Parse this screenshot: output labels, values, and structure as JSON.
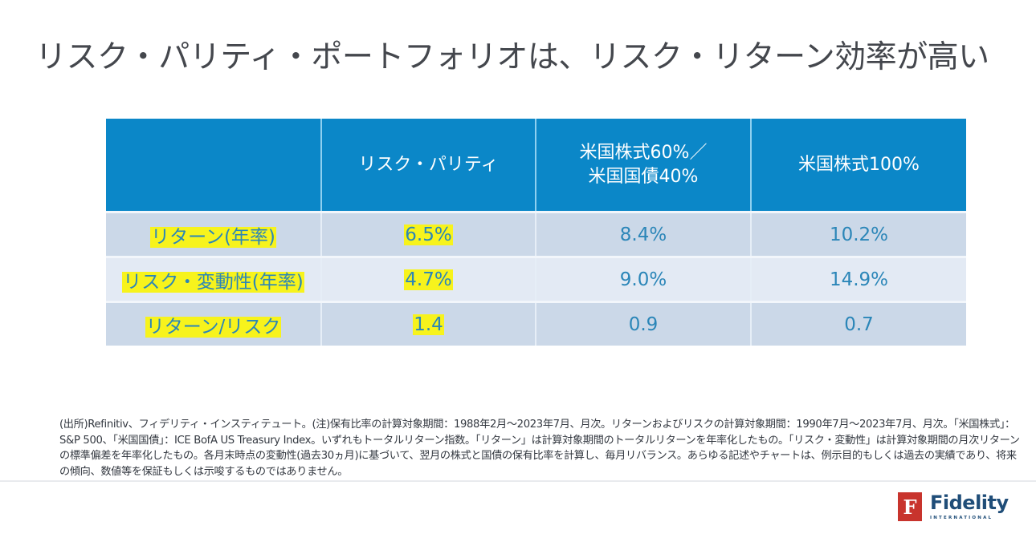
{
  "page": {
    "title": "リスク・パリティ・ポートフォリオは、リスク・リターン効率が高い"
  },
  "table": {
    "headers": [
      "",
      "リスク・パリティ",
      "米国株式60%／\n米国国債40%",
      "米国株式100%"
    ],
    "header_lines": {
      "col2_line1": "米国株式60%／",
      "col2_line2": "米国国債40%"
    },
    "rows": [
      {
        "label": "リターン(年率)",
        "values": [
          "6.5%",
          "8.4%",
          "10.2%"
        ]
      },
      {
        "label": "リスク・変動性(年率)",
        "values": [
          "4.7%",
          "9.0%",
          "14.9%"
        ]
      },
      {
        "label": "リターン/リスク",
        "values": [
          "1.4",
          "0.9",
          "0.7"
        ]
      }
    ],
    "highlighted_column": "リスク・パリティ"
  },
  "footnote": "(出所)Refinitiv、フィデリティ・インスティテュート。(注)保有比率の計算対象期間：1988年2月～2023年7月、月次。リターンおよびリスクの計算対象期間：1990年7月～2023年7月、月次。「米国株式」：S&P 500、「米国国債」：ICE BofA US Treasury Index。いずれもトータルリターン指数。「リターン」は計算対象期間のトータルリターンを年率化したもの。「リスク・変動性」は計算対象期間の月次リターンの標準偏差を年率化したもの。各月末時点の変動性(過去30ヵ月)に基づいて、翌月の株式と国債の保有比率を計算し、毎月リバランス。あらゆる記述やチャートは、例示目的もしくは過去の実績であり、将来の傾向、数値等を保証もしくは示唆するものではありません。",
  "logo": {
    "mark": "F",
    "name": "Fidelity",
    "sub": "INTERNATIONAL",
    "icon": "fidelity-logo-icon"
  },
  "colors": {
    "header_bg": "#0b87c8",
    "row_dark": "#cbd8e8",
    "row_light": "#e3eaf4",
    "cell_text": "#2b86b8",
    "highlight": "#f7f31c",
    "brand_red": "#c8342d",
    "brand_blue": "#1f4d78"
  }
}
